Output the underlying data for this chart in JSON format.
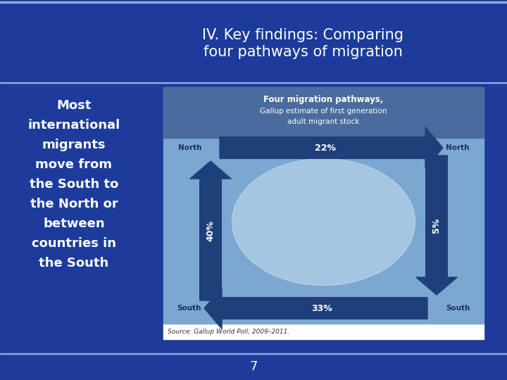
{
  "title_line1": "IV. Key findings: Comparing",
  "title_line2": "four pathways of migration",
  "slide_bg_color": "#1c3b9a",
  "title_text_color": "#ffffff",
  "body_text_lines": [
    "Most",
    "international",
    "migrants",
    "move from",
    "the South to",
    "the North or",
    "between",
    "countries in",
    "the South"
  ],
  "body_text_color": "#ffffff",
  "page_number": "7",
  "chart_title_line1": "Four migration pathways,",
  "chart_title_line2": "Gallup estimate of first generation",
  "chart_title_line3": "adult migrant stock",
  "chart_bg_color": "#7ba7d0",
  "chart_header_bg": "#4a6b9e",
  "arrow_color": "#1e3f7a",
  "arrow_label_22": "22%",
  "arrow_label_33": "33%",
  "arrow_label_40": "40%",
  "arrow_label_5": "5%",
  "north_left": "North",
  "north_right": "North",
  "south_left": "South",
  "south_right": "South",
  "source_text": "Source: Gallup World Poll, 2009–2011.",
  "separator_color": "#8ab0e0",
  "title_bar_color": "#1c3b9a",
  "bottom_bar_color": "#1c3b9a",
  "chart_border_color": "#d0d8e8",
  "glow_color": "#c8dff0",
  "label_color": "#1e3060"
}
